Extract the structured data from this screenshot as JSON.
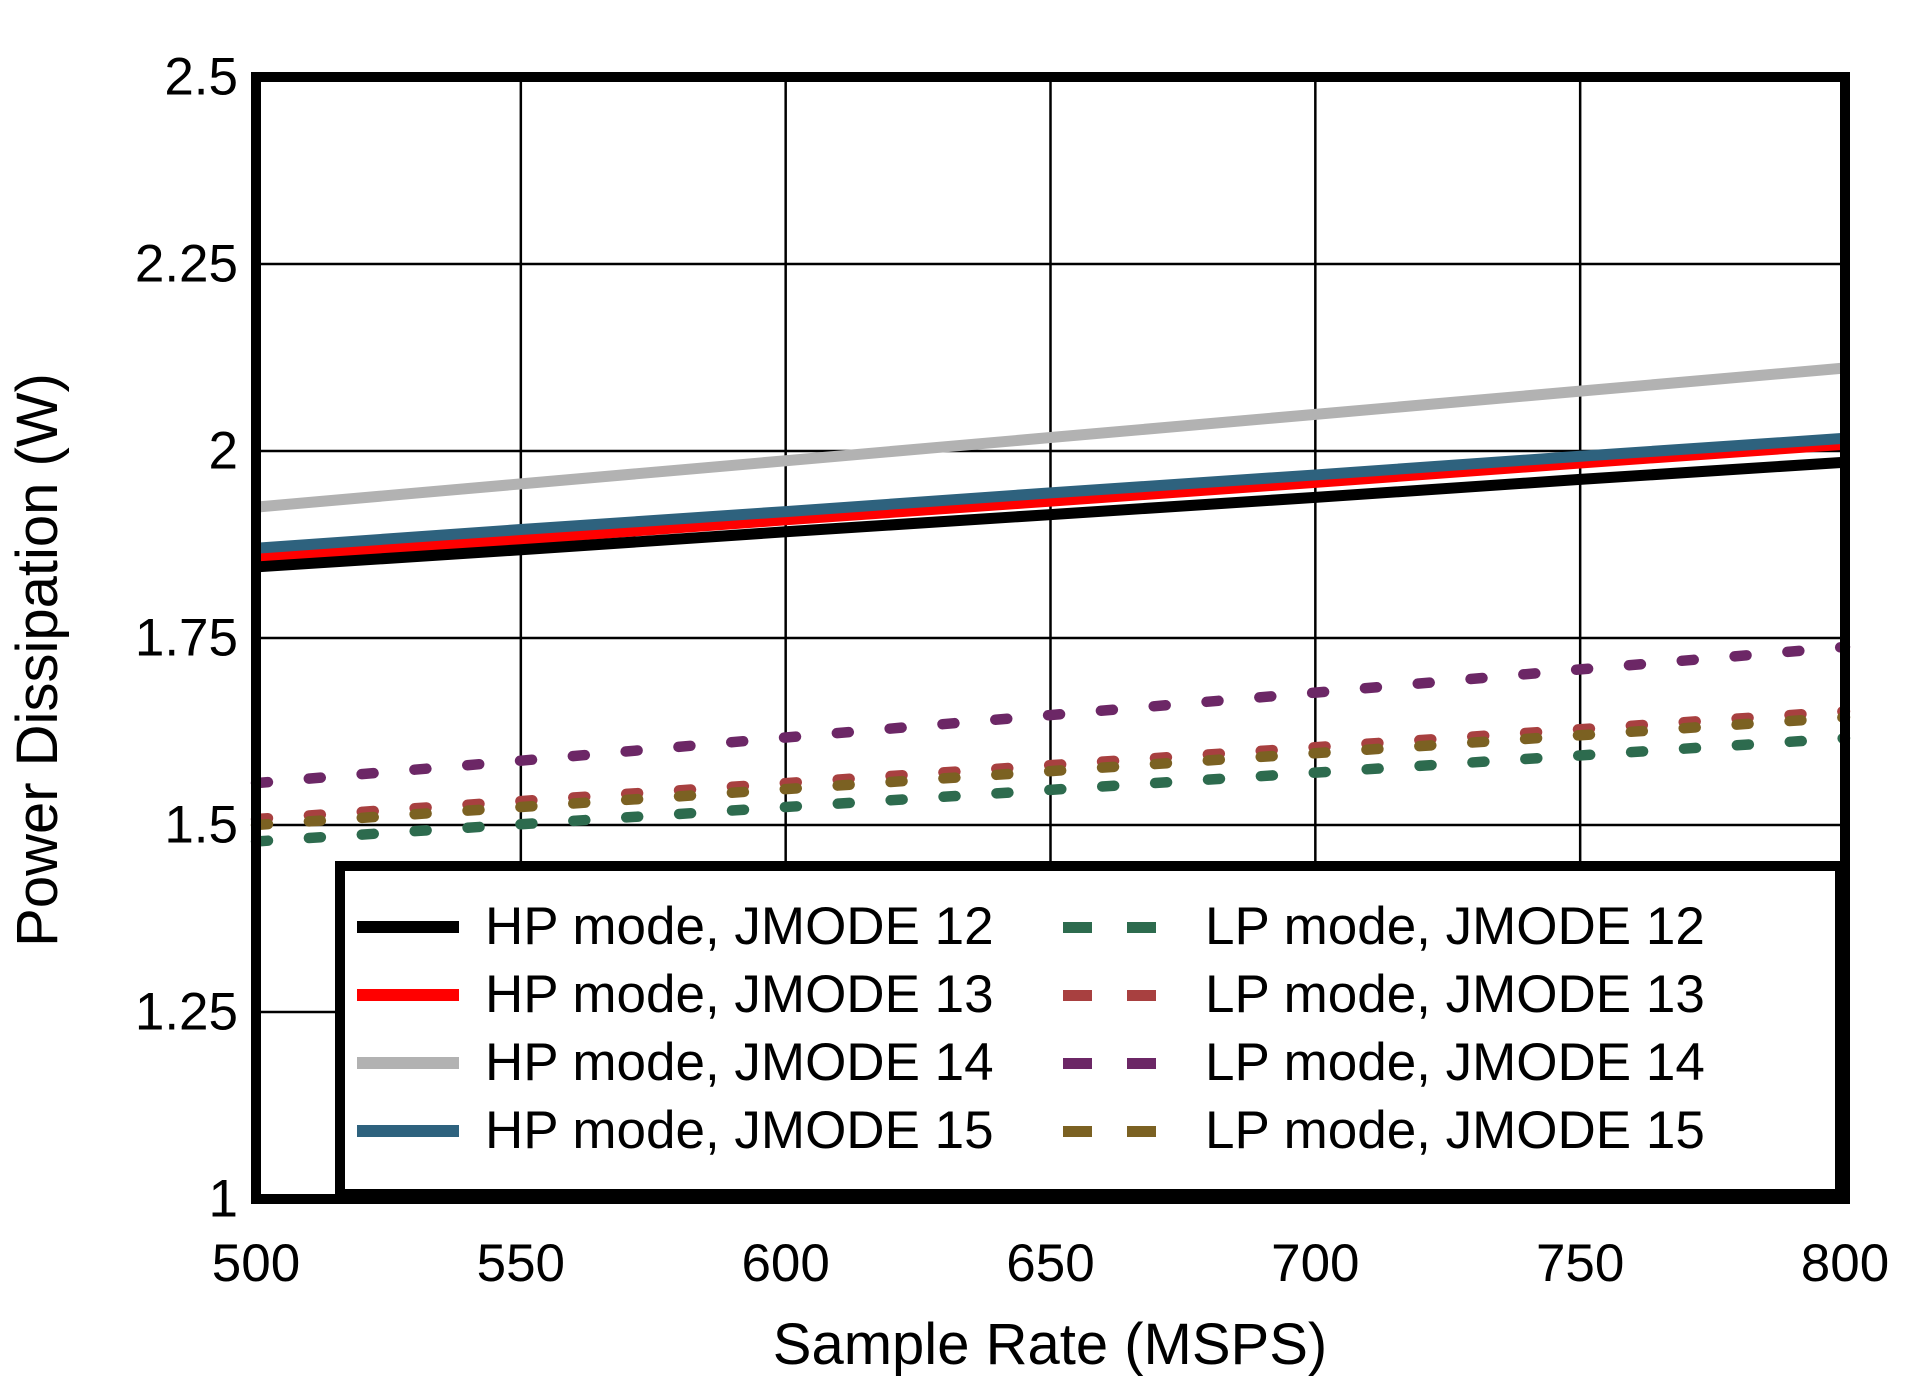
{
  "chart_data": {
    "type": "line",
    "title": "",
    "xlabel": "Sample Rate (MSPS)",
    "ylabel": "Power Dissipation (W)",
    "xlim": [
      500,
      800
    ],
    "ylim": [
      1,
      2.5
    ],
    "grid": true,
    "legend_position": "inside-bottom-right",
    "axis_color": "#000000",
    "gridline_color": "#000000",
    "x": [
      500,
      550,
      600,
      650,
      700,
      750,
      800
    ],
    "x_tick_labels": [
      "500",
      "550",
      "600",
      "650",
      "700",
      "750",
      "800"
    ],
    "y_ticks": [
      2.5,
      2.25,
      2,
      1.75,
      1.5,
      1.25,
      1
    ],
    "y_tick_labels": [
      "2.5",
      "2.25",
      "2",
      "1.75",
      "1.5",
      "1.25",
      "1"
    ],
    "series": [
      {
        "name": "HP mode, JMODE 12",
        "color": "#000000",
        "style": "solid",
        "values": [
          1.845,
          1.868,
          1.892,
          1.915,
          1.938,
          1.962,
          1.985
        ]
      },
      {
        "name": "HP mode, JMODE 13",
        "color": "#ff0000",
        "style": "solid",
        "values": [
          1.857,
          1.882,
          1.908,
          1.933,
          1.958,
          1.984,
          2.009
        ]
      },
      {
        "name": "HP mode, JMODE 14",
        "color": "#b2b2b2",
        "style": "solid",
        "values": [
          1.925,
          1.956,
          1.987,
          2.018,
          2.049,
          2.08,
          2.111
        ]
      },
      {
        "name": "HP mode, JMODE 15",
        "color": "#2e627e",
        "style": "solid",
        "values": [
          1.87,
          1.895,
          1.919,
          1.944,
          1.968,
          1.993,
          2.017
        ]
      },
      {
        "name": "LP mode, JMODE 12",
        "color": "#2d6b4e",
        "style": "dashed",
        "values": [
          1.478,
          1.501,
          1.524,
          1.547,
          1.57,
          1.593,
          1.616
        ]
      },
      {
        "name": "LP mode, JMODE 13",
        "color": "#a84040",
        "style": "dashed",
        "values": [
          1.508,
          1.532,
          1.556,
          1.58,
          1.604,
          1.628,
          1.652
        ]
      },
      {
        "name": "LP mode, JMODE 14",
        "color": "#6c2766",
        "style": "dashed",
        "values": [
          1.556,
          1.586,
          1.617,
          1.647,
          1.677,
          1.708,
          1.738
        ]
      },
      {
        "name": "LP mode, JMODE 15",
        "color": "#7b6122",
        "style": "dashed",
        "values": [
          1.5,
          1.524,
          1.548,
          1.572,
          1.596,
          1.62,
          1.644
        ]
      }
    ]
  }
}
